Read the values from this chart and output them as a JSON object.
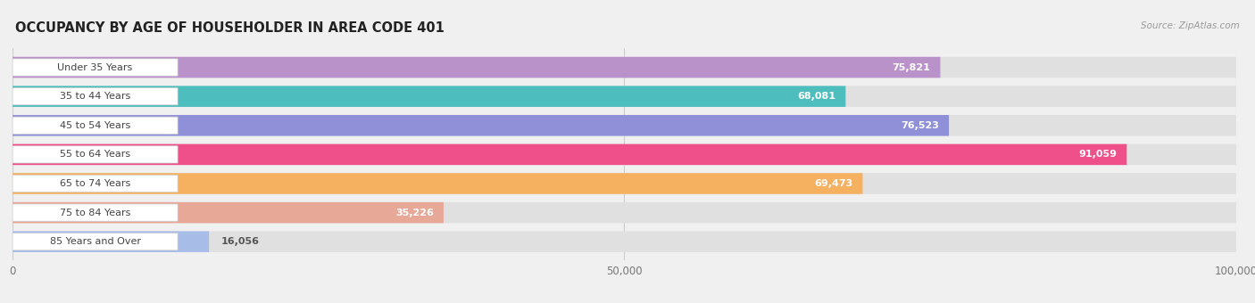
{
  "title": "OCCUPANCY BY AGE OF HOUSEHOLDER IN AREA CODE 401",
  "source": "Source: ZipAtlas.com",
  "categories": [
    "Under 35 Years",
    "35 to 44 Years",
    "45 to 54 Years",
    "55 to 64 Years",
    "65 to 74 Years",
    "75 to 84 Years",
    "85 Years and Over"
  ],
  "values": [
    75821,
    68081,
    76523,
    91059,
    69473,
    35226,
    16056
  ],
  "bar_colors": [
    "#b892c8",
    "#4dbdbe",
    "#9090d8",
    "#f0508a",
    "#f5b060",
    "#e8a898",
    "#a8bce8"
  ],
  "xlim_max": 100000,
  "bg_color": "#f0f0f0",
  "bar_bg_color": "#e0e0e0",
  "title_fontsize": 10.5,
  "label_fontsize": 8.0,
  "value_fontsize": 8.0
}
